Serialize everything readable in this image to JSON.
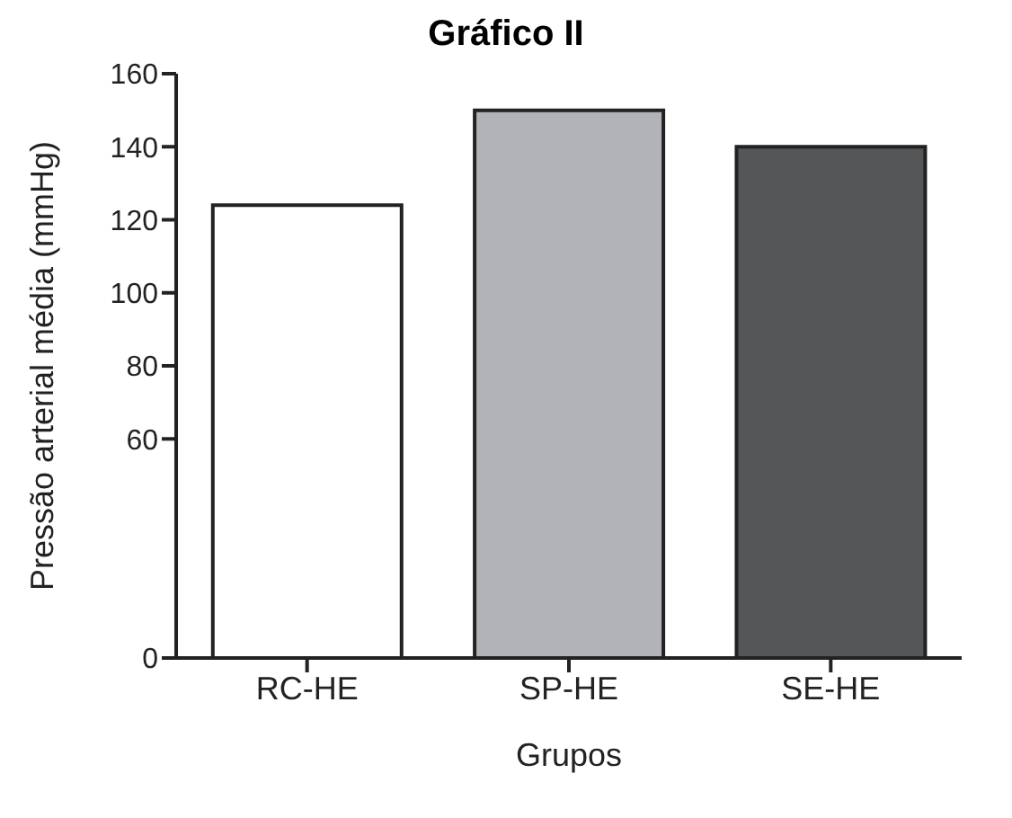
{
  "chart_data": {
    "type": "bar",
    "title": "Gráfico II",
    "xlabel": "Grupos",
    "ylabel": "Pressão arterial média (mmHg)",
    "categories": [
      "RC-HE",
      "SP-HE",
      "SE-HE"
    ],
    "values": [
      124,
      150,
      140
    ],
    "colors": [
      "#ffffff",
      "#b2b3b6",
      "#555658"
    ],
    "ylim": [
      0,
      160
    ],
    "yticks": [
      0,
      60,
      80,
      100,
      120,
      140,
      160
    ],
    "grid": false
  }
}
